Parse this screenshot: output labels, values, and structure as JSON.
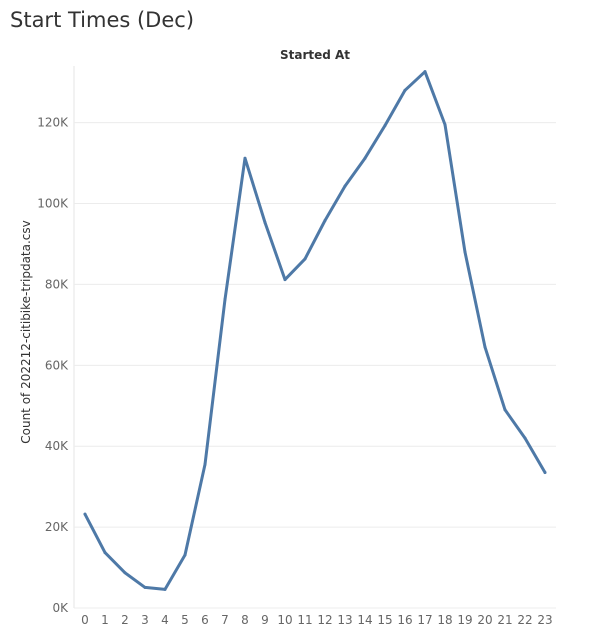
{
  "page": {
    "title": "Start Times (Dec)"
  },
  "chart_data": {
    "type": "line",
    "title": "Start Times (Dec)",
    "column_header": "Started At",
    "xlabel": "",
    "ylabel": "Count of 202212-citibike-tripdata.csv",
    "categories": [
      "0",
      "1",
      "2",
      "3",
      "4",
      "5",
      "6",
      "7",
      "8",
      "9",
      "10",
      "11",
      "12",
      "13",
      "14",
      "15",
      "16",
      "17",
      "18",
      "19",
      "20",
      "21",
      "22",
      "23"
    ],
    "series": [
      {
        "name": "",
        "color": "#4e79a7",
        "values": [
          23200,
          13700,
          8700,
          5100,
          4600,
          13100,
          35500,
          76300,
          111200,
          95300,
          81200,
          86300,
          95800,
          104300,
          111200,
          119300,
          128000,
          132600,
          119500,
          88000,
          64500,
          49000,
          42000,
          33500
        ]
      }
    ],
    "ylim": [
      0,
      134000
    ],
    "yticks": [
      0,
      20000,
      40000,
      60000,
      80000,
      100000,
      120000
    ],
    "ytick_labels": [
      "0K",
      "20K",
      "40K",
      "60K",
      "80K",
      "100K",
      "120K"
    ],
    "grid": true,
    "legend": "none"
  }
}
